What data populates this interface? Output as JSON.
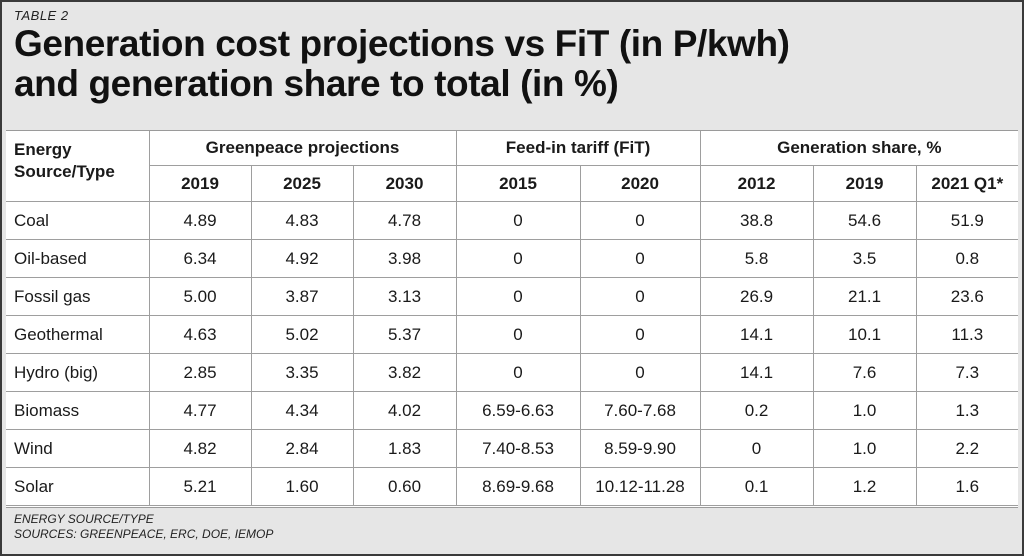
{
  "header": {
    "table_label": "TABLE 2",
    "title_lines": [
      "Generation cost projections vs FiT (in P/kwh)",
      "and generation share to total (in %)"
    ]
  },
  "table": {
    "source_header": "Energy Source/Type",
    "groups": [
      {
        "label": "Greenpeace projections",
        "years": [
          "2019",
          "2025",
          "2030"
        ]
      },
      {
        "label": "Feed-in tariff (FiT)",
        "years": [
          "2015",
          "2020"
        ]
      },
      {
        "label": "Generation share, %",
        "years": [
          "2012",
          "2019",
          "2021 Q1*"
        ]
      }
    ],
    "rows": [
      {
        "source": "Coal",
        "values": [
          "4.89",
          "4.83",
          "4.78",
          "0",
          "0",
          "38.8",
          "54.6",
          "51.9"
        ]
      },
      {
        "source": "Oil-based",
        "values": [
          "6.34",
          "4.92",
          "3.98",
          "0",
          "0",
          "5.8",
          "3.5",
          "0.8"
        ]
      },
      {
        "source": "Fossil gas",
        "values": [
          "5.00",
          "3.87",
          "3.13",
          "0",
          "0",
          "26.9",
          "21.1",
          "23.6"
        ]
      },
      {
        "source": "Geothermal",
        "values": [
          "4.63",
          "5.02",
          "5.37",
          "0",
          "0",
          "14.1",
          "10.1",
          "11.3"
        ]
      },
      {
        "source": "Hydro (big)",
        "values": [
          "2.85",
          "3.35",
          "3.82",
          "0",
          "0",
          "14.1",
          "7.6",
          "7.3"
        ]
      },
      {
        "source": "Biomass",
        "values": [
          "4.77",
          "4.34",
          "4.02",
          "6.59-6.63",
          "7.60-7.68",
          "0.2",
          "1.0",
          "1.3"
        ]
      },
      {
        "source": "Wind",
        "values": [
          "4.82",
          "2.84",
          "1.83",
          "7.40-8.53",
          "8.59-9.90",
          "0",
          "1.0",
          "2.2"
        ]
      },
      {
        "source": "Solar",
        "values": [
          "5.21",
          "1.60",
          "0.60",
          "8.69-9.68",
          "10.12-11.28",
          "0.1",
          "1.2",
          "1.6"
        ]
      }
    ]
  },
  "footer": {
    "line1": "ENERGY SOURCE/TYPE",
    "line2": "SOURCES: GREENPEACE, ERC, DOE, IEMOP"
  }
}
